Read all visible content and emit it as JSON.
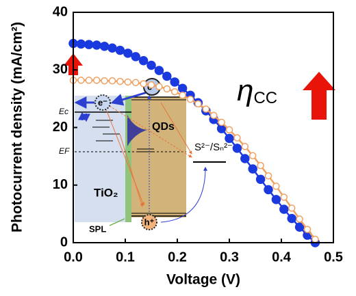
{
  "chart_data": {
    "type": "line",
    "x_label": "Voltage (V)",
    "y_label": "Photocurrent density (mA/cm²)",
    "xlim": [
      0,
      0.5
    ],
    "xticks": [
      {
        "value": 0,
        "label": "0.0"
      },
      0.1,
      0.2,
      0.3,
      0.4,
      0.5
    ],
    "ylim": [
      0,
      40
    ],
    "yticks": [
      0,
      10,
      20,
      30,
      40
    ],
    "series": [
      {
        "color": "#1a3ae0",
        "marker": "filled",
        "x": [
          0,
          0.015,
          0.03,
          0.045,
          0.06,
          0.075,
          0.09,
          0.105,
          0.12,
          0.135,
          0.15,
          0.165,
          0.18,
          0.195,
          0.21,
          0.225,
          0.24,
          0.255,
          0.27,
          0.285,
          0.3,
          0.315,
          0.33,
          0.345,
          0.36,
          0.375,
          0.39,
          0.405,
          0.42,
          0.435,
          0.45,
          0.465
        ],
        "values": [
          34.6,
          34.5,
          34.4,
          34.3,
          34.1,
          33.8,
          33.4,
          32.9,
          32.3,
          31.6,
          30.8,
          29.9,
          28.9,
          27.9,
          26.8,
          25.6,
          24.3,
          22.9,
          21.4,
          19.8,
          18.1,
          16.4,
          14.6,
          12.8,
          11.0,
          9.2,
          7.5,
          5.8,
          4.2,
          2.7,
          1.3,
          0.0
        ]
      },
      {
        "color": "#f0a060",
        "marker": "open",
        "x": [
          0,
          0.015,
          0.03,
          0.045,
          0.06,
          0.075,
          0.09,
          0.105,
          0.12,
          0.135,
          0.15,
          0.165,
          0.18,
          0.195,
          0.21,
          0.225,
          0.24,
          0.255,
          0.27,
          0.285,
          0.3,
          0.315,
          0.33,
          0.345,
          0.36,
          0.375,
          0.39,
          0.405,
          0.42,
          0.435,
          0.45,
          0.465
        ],
        "values": [
          28.2,
          28.2,
          28.2,
          28.2,
          28.1,
          28.1,
          28.0,
          27.9,
          27.8,
          27.6,
          27.4,
          27.1,
          26.7,
          26.2,
          25.6,
          24.9,
          24.1,
          23.2,
          22.1,
          20.9,
          19.6,
          18.2,
          16.7,
          15.1,
          13.4,
          11.6,
          9.8,
          7.9,
          6.0,
          4.1,
          2.3,
          0.6
        ]
      }
    ],
    "annotations": {
      "eta": "η",
      "eta_sub": "CC",
      "tio2": "TiO₂",
      "qds": "QDs",
      "redox": "S²⁻/Sₙ²⁻",
      "ec": "Ec",
      "ef": "EF",
      "spl": "SPL",
      "electron_qd": "e⁻",
      "electron_tio2": "e⁻",
      "hole": "h⁺"
    }
  }
}
